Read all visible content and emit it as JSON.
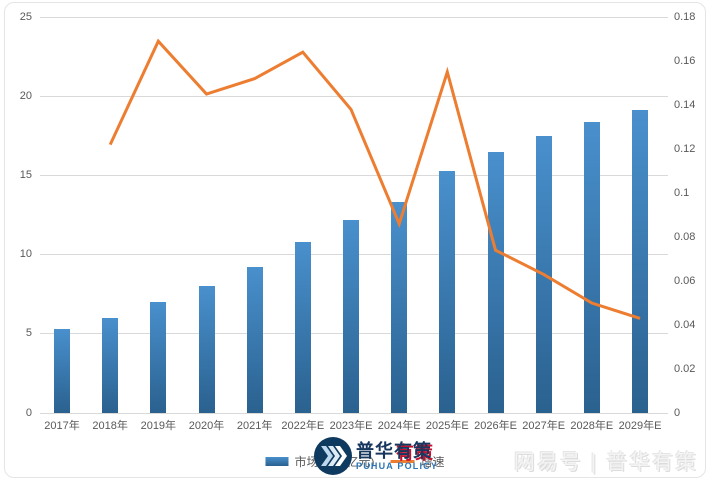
{
  "chart_data": {
    "type": "combo",
    "title": "",
    "categories": [
      "2017年",
      "2018年",
      "2019年",
      "2020年",
      "2021年",
      "2022年E",
      "2023年E",
      "2024年E",
      "2025年E",
      "2026年E",
      "2027年E",
      "2028年E",
      "2029年E"
    ],
    "series": [
      {
        "name": "市场规模(亿元)",
        "type": "bar",
        "axis": "left",
        "values": [
          5.3,
          6.0,
          7.0,
          8.0,
          9.2,
          10.8,
          12.2,
          13.3,
          15.3,
          16.5,
          17.5,
          18.4,
          19.1
        ]
      },
      {
        "name": "增速",
        "type": "line",
        "axis": "right",
        "values": [
          null,
          0.122,
          0.169,
          0.145,
          0.152,
          0.164,
          0.138,
          0.086,
          0.155,
          0.074,
          0.063,
          0.05,
          0.043
        ]
      }
    ],
    "left_axis": {
      "min": 0,
      "max": 25,
      "tick_labels": [
        "0",
        "5",
        "10",
        "15",
        "20",
        "25"
      ]
    },
    "right_axis": {
      "min": 0,
      "max": 0.18,
      "tick_labels": [
        "0",
        "0.02",
        "0.04",
        "0.06",
        "0.08",
        "0.1",
        "0.12",
        "0.14",
        "0.16",
        "0.18"
      ]
    },
    "grid": true,
    "legend_position": "bottom"
  },
  "legend": {
    "bar_label": "市场规模(亿元)",
    "line_label": "增速"
  },
  "logo": {
    "cn_part1": "普华",
    "cn_part2": "有策",
    "en": "PUHUA POLICY"
  },
  "watermark": "网易号 | 普华有策",
  "colors": {
    "bar_top": "#4990CD",
    "bar_bottom": "#2A618F",
    "line": "#ED7D31",
    "grid": "#D9D9D9",
    "axis_text": "#595959",
    "logo_navy": "#17375E",
    "logo_blue": "#2E75B6",
    "logo_red": "#C8102E"
  }
}
